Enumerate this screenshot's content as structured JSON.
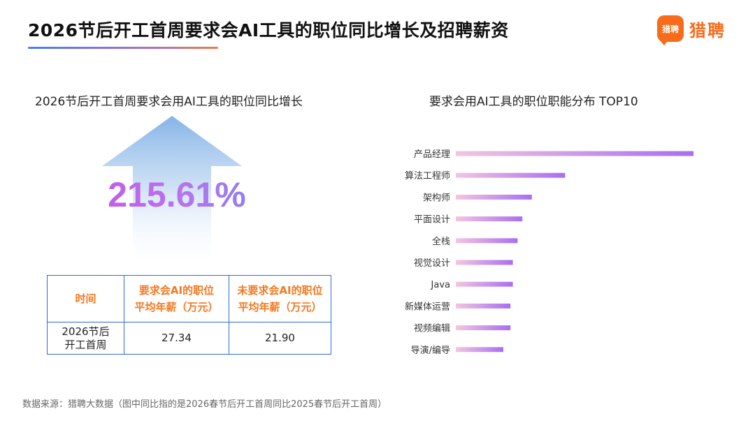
{
  "header": {
    "title": "2026节后开工首周要求会AI工具的职位同比增长及招聘薪资",
    "logo_badge": "猎聘",
    "logo_text": "猎聘"
  },
  "left": {
    "subtitle": "2026节后开工首周要求会用AI工具的职位同比增长",
    "growth": "215.61%",
    "table": {
      "headers": [
        "时间",
        "要求会AI的职位平均年薪（万元）",
        "未要求会AI的职位平均年薪（万元）"
      ],
      "header_lines": [
        [
          "时间"
        ],
        [
          "要求会AI的职位",
          "平均年薪（万元）"
        ],
        [
          "未要求会AI的职位",
          "平均年薪（万元）"
        ]
      ],
      "row": {
        "period_lines": [
          "2026节后",
          "开工首周"
        ],
        "ai_salary": "27.34",
        "non_ai_salary": "21.90"
      }
    }
  },
  "right": {
    "subtitle": "要求会用AI工具的职位职能分布 TOP10"
  },
  "chart_data": {
    "type": "bar",
    "orientation": "horizontal",
    "title": "要求会用AI工具的职位职能分布 TOP10",
    "categories": [
      "产品经理",
      "算法工程师",
      "架构师",
      "平面设计",
      "全栈",
      "视觉设计",
      "Java",
      "新媒体运营",
      "视频编辑",
      "导演/编导"
    ],
    "values": [
      100,
      46,
      32,
      28,
      26,
      24,
      24,
      23,
      23,
      20
    ],
    "value_unit": "relative bar length (no axis or data labels shown)",
    "gradient_colors": [
      "#f3c6de",
      "#a96ef2"
    ],
    "grid": false,
    "legend": "none"
  },
  "colors": {
    "accent_orange": "#f5781f",
    "table_border": "#2f6ad8",
    "bar_start": "#f3c6de",
    "bar_end": "#a96ef2"
  },
  "footnote": "数据来源：猎聘大数据（图中同比指的是2026春节后开工首周同比2025春节后开工首周）"
}
